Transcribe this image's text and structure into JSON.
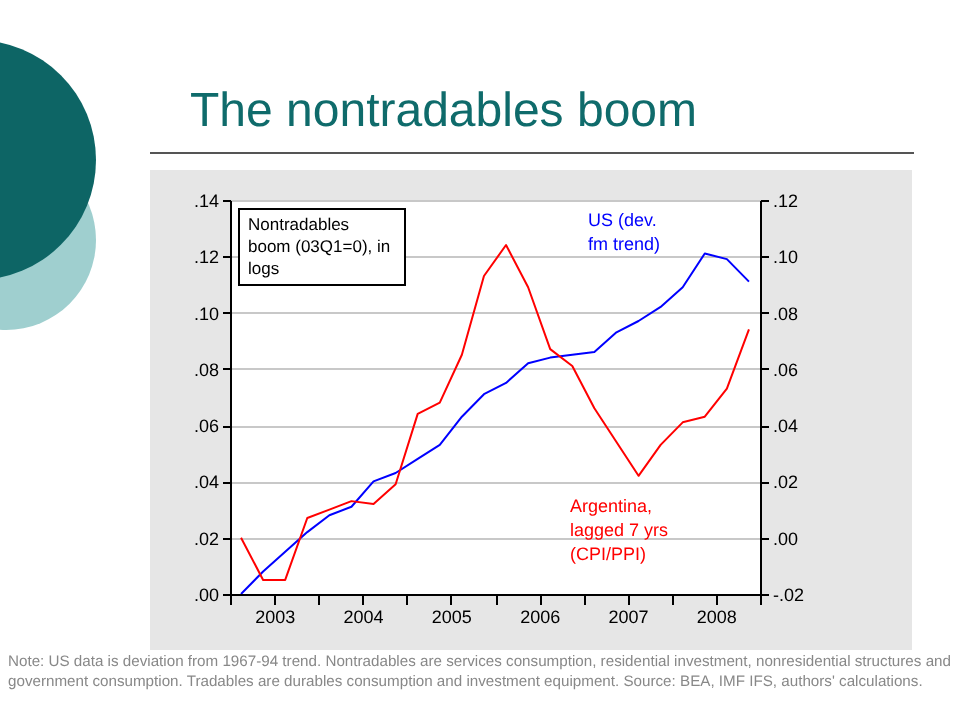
{
  "chart_data": {
    "type": "line",
    "title": "The nontradables boom",
    "x": [
      2003.125,
      2003.375,
      2003.625,
      2003.875,
      2004.125,
      2004.375,
      2004.625,
      2004.875,
      2005.125,
      2005.375,
      2005.625,
      2005.875,
      2006.125,
      2006.375,
      2006.625,
      2006.875,
      2007.125,
      2007.375,
      2007.625,
      2007.875,
      2008.125,
      2008.375,
      2008.625,
      2008.875
    ],
    "series": [
      {
        "name": "US (dev. fm trend)",
        "color": "#0000ff",
        "values": [
          0.0,
          0.008,
          0.015,
          0.022,
          0.028,
          0.031,
          0.04,
          0.043,
          0.048,
          0.053,
          0.063,
          0.071,
          0.075,
          0.082,
          0.084,
          0.085,
          0.086,
          0.093,
          0.097,
          0.102,
          0.109,
          0.121,
          0.119,
          0.111
        ]
      },
      {
        "name": "Argentina, lagged 7 yrs (CPI/PPI)",
        "color": "#ff0000",
        "axis": "y2",
        "values": [
          0.0,
          -0.015,
          -0.015,
          0.007,
          0.01,
          0.013,
          0.012,
          0.019,
          0.044,
          0.048,
          0.065,
          0.093,
          0.104,
          0.089,
          0.067,
          0.061,
          0.046,
          0.034,
          0.022,
          0.033,
          0.041,
          0.043,
          0.053,
          0.074
        ]
      }
    ],
    "xlim": [
      2003,
      2009
    ],
    "xticks": [
      {
        "value": 2003,
        "label": null
      },
      {
        "value": 2003.5,
        "label": "2003"
      },
      {
        "value": 2004,
        "label": null
      },
      {
        "value": 2004.5,
        "label": "2004"
      },
      {
        "value": 2005,
        "label": null
      },
      {
        "value": 2005.5,
        "label": "2005"
      },
      {
        "value": 2006,
        "label": null
      },
      {
        "value": 2006.5,
        "label": "2006"
      },
      {
        "value": 2007,
        "label": null
      },
      {
        "value": 2007.5,
        "label": "2007"
      },
      {
        "value": 2008,
        "label": null
      },
      {
        "value": 2008.5,
        "label": "2008"
      },
      {
        "value": 2009,
        "label": null
      }
    ],
    "ylim": [
      0,
      0.14
    ],
    "yticks": [
      {
        "value": 0,
        "label": ".00"
      },
      {
        "value": 0.02,
        "label": ".02"
      },
      {
        "value": 0.04,
        "label": ".04"
      },
      {
        "value": 0.06,
        "label": ".06"
      },
      {
        "value": 0.08,
        "label": ".08"
      },
      {
        "value": 0.1,
        "label": ".10"
      },
      {
        "value": 0.12,
        "label": ".12"
      },
      {
        "value": 0.14,
        "label": ".14"
      }
    ],
    "y2lim": [
      -0.02,
      0.12
    ],
    "y2ticks": [
      {
        "value": -0.02,
        "label": "-.02"
      },
      {
        "value": 0,
        "label": ".00"
      },
      {
        "value": 0.02,
        "label": ".02"
      },
      {
        "value": 0.04,
        "label": ".04"
      },
      {
        "value": 0.06,
        "label": ".06"
      },
      {
        "value": 0.08,
        "label": ".08"
      },
      {
        "value": 0.1,
        "label": ".10"
      },
      {
        "value": 0.12,
        "label": ".12"
      }
    ],
    "grid": "y",
    "annotations": [
      "Nontradables boom (03Q1=0), in logs",
      "Note: US data is deviation from 1967-94 trend.  Nontradables are services consumption, residential investment, nonresidential structures and government consumption. Tradables are durables consumption and investment equipment. Source: BEA, IMF IFS, authors' calculations."
    ]
  }
}
